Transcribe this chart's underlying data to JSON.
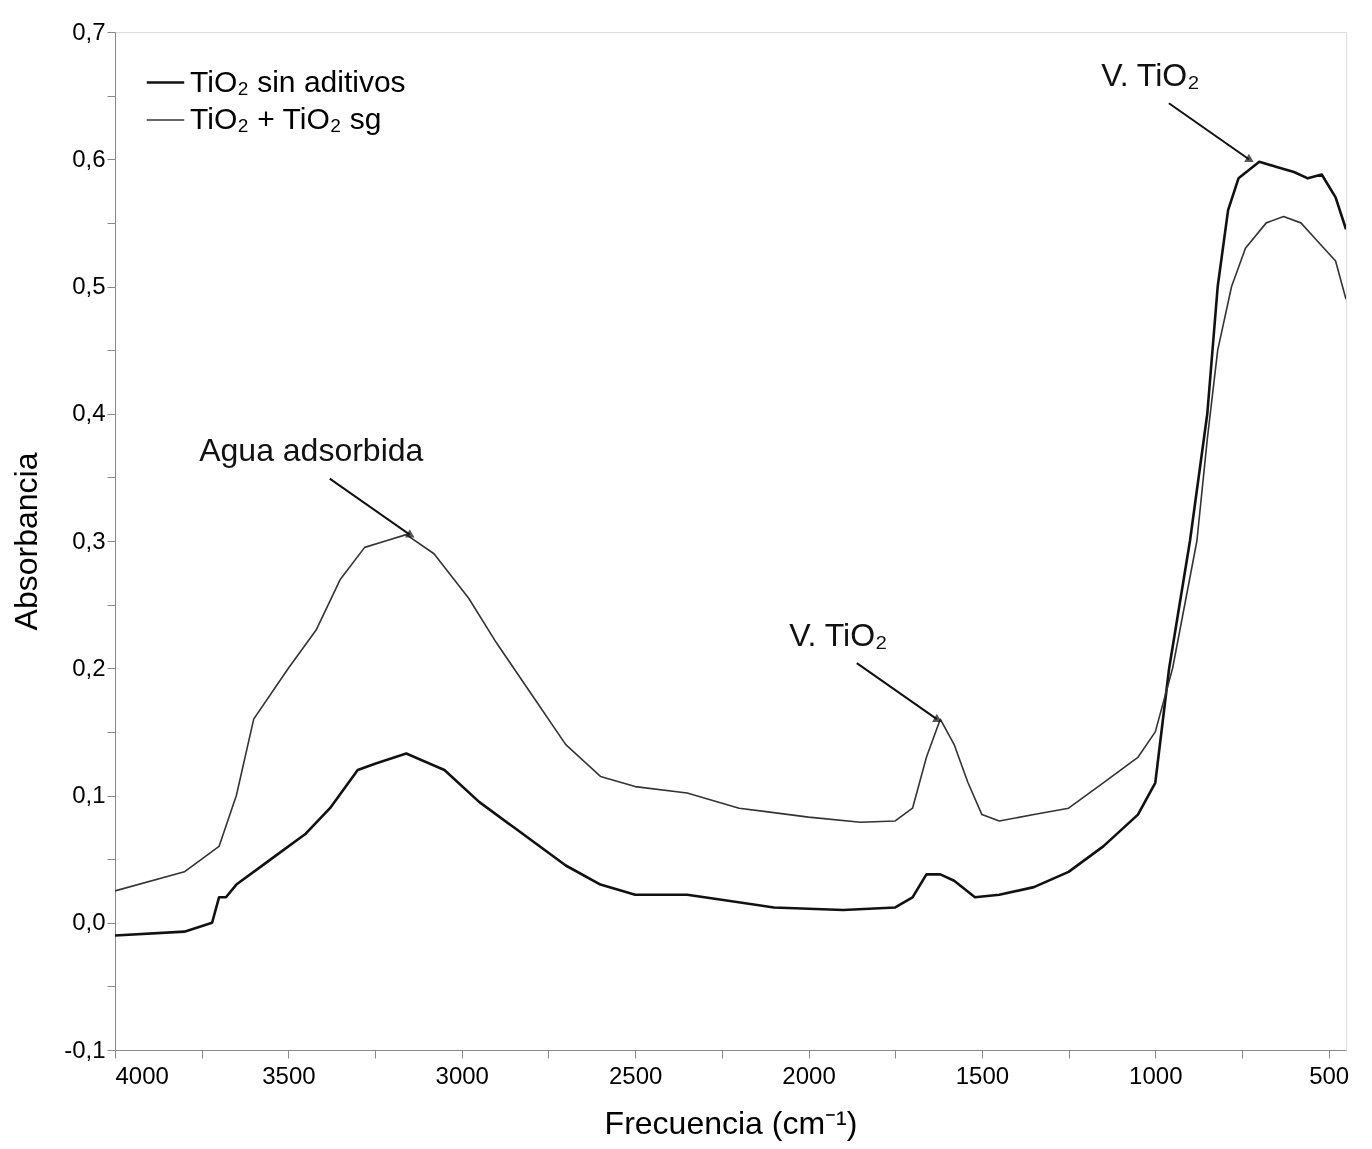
{
  "chart_data": {
    "type": "line",
    "xlabel": "Frecuencia (cm⁻¹)",
    "ylabel": "Absorbancia",
    "xlim": [
      4000,
      450
    ],
    "ylim": [
      -0.1,
      0.7
    ],
    "xticks": [
      4000,
      {
        "value": 3750,
        "label": null
      },
      3500,
      {
        "value": 3250,
        "label": null
      },
      3000,
      {
        "value": 2750,
        "label": null
      },
      2500,
      {
        "value": 2250,
        "label": null
      },
      2000,
      {
        "value": 1750,
        "label": null
      },
      1500,
      {
        "value": 1250,
        "label": null
      },
      1000,
      {
        "value": 750,
        "label": null
      },
      500
    ],
    "yticks": [
      {
        "value": -0.1,
        "label": "-0,1"
      },
      {
        "value": -0.05,
        "label": null
      },
      {
        "value": 0,
        "label": "0,0"
      },
      {
        "value": 0.05,
        "label": null
      },
      {
        "value": 0.1,
        "label": "0,1"
      },
      {
        "value": 0.15,
        "label": null
      },
      {
        "value": 0.2,
        "label": "0,2"
      },
      {
        "value": 0.25,
        "label": null
      },
      {
        "value": 0.3,
        "label": "0,3"
      },
      {
        "value": 0.35,
        "label": null
      },
      {
        "value": 0.4,
        "label": "0,4"
      },
      {
        "value": 0.45,
        "label": null
      },
      {
        "value": 0.5,
        "label": "0,5"
      },
      {
        "value": 0.55,
        "label": null
      },
      {
        "value": 0.6,
        "label": "0,6"
      },
      {
        "value": 0.65,
        "label": null
      },
      {
        "value": 0.7,
        "label": "0,7"
      }
    ],
    "grid": false,
    "legend": "top left",
    "marker": "none",
    "line_style": "solid",
    "series": [
      {
        "name": "TiO₂ sin aditivos",
        "color": "#111111",
        "x": [
          4000,
          3800,
          3720,
          3700,
          3680,
          3650,
          3550,
          3450,
          3380,
          3300,
          3250,
          3160,
          3050,
          2950,
          2850,
          2700,
          2600,
          2500,
          2350,
          2300,
          2100,
          1900,
          1750,
          1700,
          1660,
          1620,
          1580,
          1520,
          1450,
          1350,
          1250,
          1150,
          1050,
          1000,
          960,
          900,
          850,
          820,
          790,
          760,
          700,
          650,
          600,
          560,
          520,
          480,
          450
        ],
        "values": [
          -0.01,
          -0.007,
          0.0,
          0.02,
          0.02,
          0.03,
          0.05,
          0.07,
          0.09,
          0.12,
          0.125,
          0.133,
          0.12,
          0.095,
          0.075,
          0.045,
          0.03,
          0.022,
          0.022,
          0.02,
          0.012,
          0.01,
          0.012,
          0.02,
          0.038,
          0.038,
          0.033,
          0.02,
          0.022,
          0.028,
          0.04,
          0.06,
          0.085,
          0.11,
          0.2,
          0.3,
          0.4,
          0.5,
          0.56,
          0.585,
          0.598,
          0.594,
          0.59,
          0.585,
          0.588,
          0.57,
          0.545
        ]
      },
      {
        "name": "TiO₂ + TiO₂ sg",
        "color": "#333333",
        "x": [
          4000,
          3800,
          3700,
          3650,
          3600,
          3500,
          3420,
          3350,
          3280,
          3220,
          3160,
          3080,
          2980,
          2900,
          2800,
          2700,
          2600,
          2500,
          2350,
          2200,
          2000,
          1850,
          1750,
          1700,
          1660,
          1620,
          1580,
          1540,
          1500,
          1450,
          1350,
          1250,
          1150,
          1050,
          1000,
          950,
          880,
          850,
          820,
          780,
          740,
          680,
          630,
          580,
          530,
          480,
          450
        ],
        "values": [
          0.025,
          0.04,
          0.06,
          0.1,
          0.16,
          0.2,
          0.23,
          0.27,
          0.295,
          0.3,
          0.305,
          0.29,
          0.255,
          0.22,
          0.18,
          0.14,
          0.115,
          0.107,
          0.102,
          0.09,
          0.083,
          0.079,
          0.08,
          0.09,
          0.13,
          0.16,
          0.14,
          0.11,
          0.085,
          0.08,
          0.085,
          0.09,
          0.11,
          0.13,
          0.15,
          0.2,
          0.3,
          0.38,
          0.45,
          0.5,
          0.53,
          0.55,
          0.555,
          0.55,
          0.535,
          0.52,
          0.49
        ]
      }
    ],
    "annotations": [
      {
        "text": "Agua adsorbida",
        "x": 3150,
        "y": 0.305
      },
      {
        "text": "V. TiO₂",
        "x": 1630,
        "y": 0.16
      },
      {
        "text": "V. TiO₂",
        "x": 730,
        "y": 0.6
      }
    ]
  }
}
